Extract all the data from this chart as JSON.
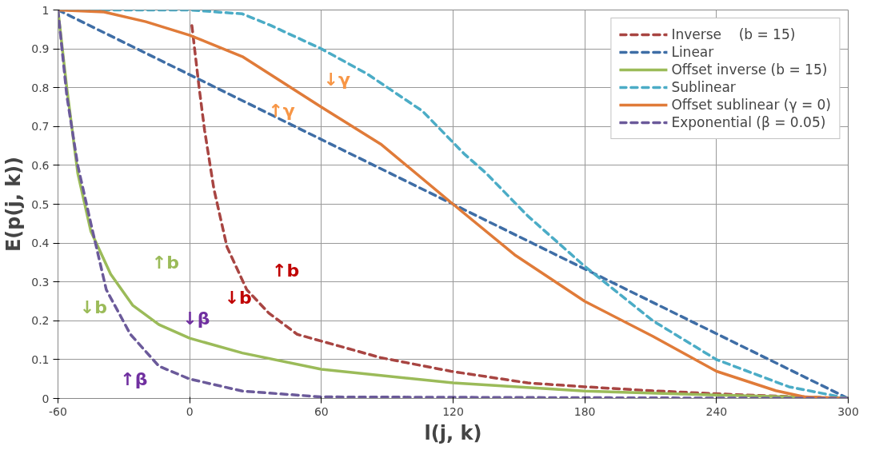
{
  "chart_data": {
    "type": "line",
    "xlabel": "l(j, k)",
    "ylabel": "E(p(j, k))",
    "xlim": [
      -60,
      300
    ],
    "ylim": [
      0,
      1
    ],
    "xticks": [
      -60,
      0,
      60,
      120,
      180,
      240,
      300
    ],
    "yticks": [
      0,
      0.1,
      0.2,
      0.3,
      0.4,
      0.5,
      0.6,
      0.7,
      0.8,
      0.9,
      1
    ],
    "grid": true,
    "legend": "top right",
    "marker": "none",
    "series": [
      {
        "name": "Inverse    (b = 15)",
        "color": "#a84542",
        "line_style": "dashed",
        "x": [
          1,
          4.3,
          6.8,
          11,
          17,
          26,
          36,
          49,
          68,
          87,
          119,
          154,
          180,
          210,
          248,
          300
        ],
        "values": [
          0.96,
          0.8,
          0.69,
          0.54,
          0.39,
          0.28,
          0.22,
          0.165,
          0.135,
          0.105,
          0.07,
          0.04,
          0.03,
          0.02,
          0.01,
          0
        ]
      },
      {
        "name": "Linear",
        "color": "#3f6ea6",
        "line_style": "dashed",
        "x": [
          -60,
          300
        ],
        "values": [
          1,
          0
        ]
      },
      {
        "name": "Offset inverse (b = 15)",
        "color": "#9bbb59",
        "line_style": "solid",
        "x": [
          -60,
          -56,
          -51,
          -45,
          -36,
          -26,
          -14,
          0,
          24,
          60,
          120,
          180,
          240,
          300
        ],
        "values": [
          1,
          0.8,
          0.58,
          0.43,
          0.32,
          0.24,
          0.19,
          0.155,
          0.117,
          0.075,
          0.04,
          0.019,
          0.009,
          0
        ]
      },
      {
        "name": "Sublinear",
        "color": "#4bacc6",
        "line_style": "dashed",
        "x": [
          -60,
          0,
          24,
          37,
          60,
          81,
          106,
          125,
          135,
          154,
          180,
          211,
          240,
          273,
          300
        ],
        "values": [
          1,
          1,
          0.99,
          0.96,
          0.9,
          0.835,
          0.74,
          0.63,
          0.58,
          0.47,
          0.34,
          0.2,
          0.1,
          0.03,
          0
        ]
      },
      {
        "name": "Offset sublinear (γ = 0)",
        "color": "#e07b39",
        "line_style": "solid",
        "x": [
          -60,
          -39,
          -20,
          0,
          24,
          60,
          87,
          120,
          148,
          180,
          211,
          240,
          267,
          280,
          300
        ],
        "values": [
          1,
          0.995,
          0.97,
          0.935,
          0.88,
          0.75,
          0.655,
          0.5,
          0.37,
          0.25,
          0.16,
          0.07,
          0.02,
          0.004,
          0
        ]
      },
      {
        "name": "Exponential (β = 0.05)",
        "color": "#6b5a9a",
        "line_style": "dashed",
        "x": [
          -60,
          -56,
          -51,
          -45,
          -38,
          -27,
          -14,
          0,
          24,
          60,
          300
        ],
        "values": [
          1,
          0.78,
          0.6,
          0.45,
          0.28,
          0.165,
          0.083,
          0.05,
          0.019,
          0.004,
          0
        ]
      }
    ],
    "annotations": [
      "↓γ",
      "↑γ",
      "↑b",
      "↓b",
      "↓β",
      "↑β",
      "↑b",
      "↓b"
    ]
  }
}
